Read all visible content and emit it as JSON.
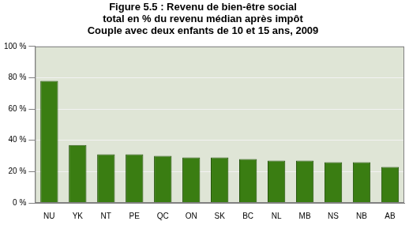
{
  "chart_data": {
    "type": "bar",
    "title": [
      "Figure 5.5 : Revenu de bien-être social",
      "total en % du revenu médian après impôt",
      "Couple avec deux enfants de 10 et 15 ans, 2009"
    ],
    "categories": [
      "NU",
      "YK",
      "NT",
      "PE",
      "QC",
      "ON",
      "SK",
      "BC",
      "NL",
      "MB",
      "NS",
      "NB",
      "AB"
    ],
    "values": [
      78,
      37,
      31,
      31,
      30,
      29,
      29,
      28,
      27,
      27,
      26,
      26,
      23
    ],
    "color": "#3a7d12",
    "ylim": [
      0,
      100
    ],
    "yticks": [
      {
        "value": 0,
        "label": "0 %"
      },
      {
        "value": 20,
        "label": "20 %"
      },
      {
        "value": 40,
        "label": "40 %"
      },
      {
        "value": 60,
        "label": "60 %"
      },
      {
        "value": 80,
        "label": "80 %"
      },
      {
        "value": 100,
        "label": "100 %"
      }
    ],
    "grid": true
  }
}
